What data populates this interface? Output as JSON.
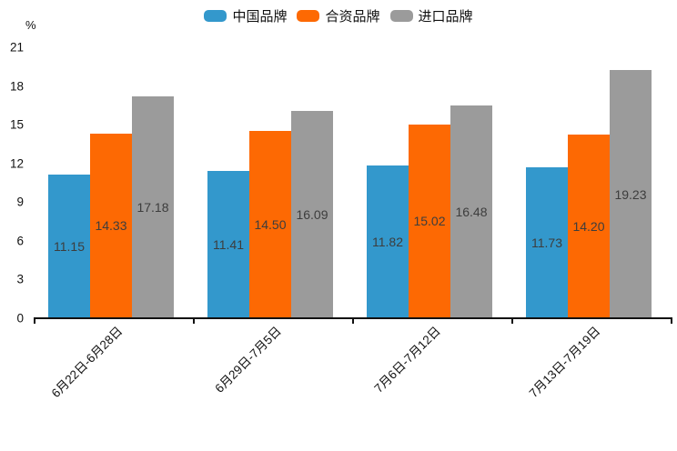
{
  "chart_data": {
    "type": "bar",
    "title": "",
    "ylabel": "%",
    "xlabel": "",
    "categories": [
      "6月22日-6月28日",
      "6月29日-7月5日",
      "7月6日-7月12日",
      "7月13日-7月19日"
    ],
    "series": [
      {
        "name": "中国品牌",
        "color": "#3398cc",
        "values": [
          11.15,
          11.41,
          11.82,
          11.73
        ],
        "data_labels": [
          "11.15",
          "11.41",
          "11.82",
          "11.73"
        ]
      },
      {
        "name": "合资品牌",
        "color": "#fd6903",
        "values": [
          14.33,
          14.5,
          15.02,
          14.2
        ],
        "data_labels": [
          "14.33",
          "14.50",
          "15.02",
          "14.20"
        ]
      },
      {
        "name": "进口品牌",
        "color": "#9b9b9b",
        "values": [
          17.18,
          16.09,
          16.48,
          19.23
        ],
        "data_labels": [
          "17.18",
          "16.09",
          "16.48",
          "19.23"
        ]
      }
    ],
    "ylim": [
      0,
      21
    ],
    "yticks": [
      0,
      3,
      6,
      9,
      12,
      15,
      18,
      21
    ],
    "grid": false,
    "legend_position": "top",
    "bar_label_position": "inside-center",
    "bar_label_color": "#3d3d3d",
    "axis_color": "#111111"
  }
}
